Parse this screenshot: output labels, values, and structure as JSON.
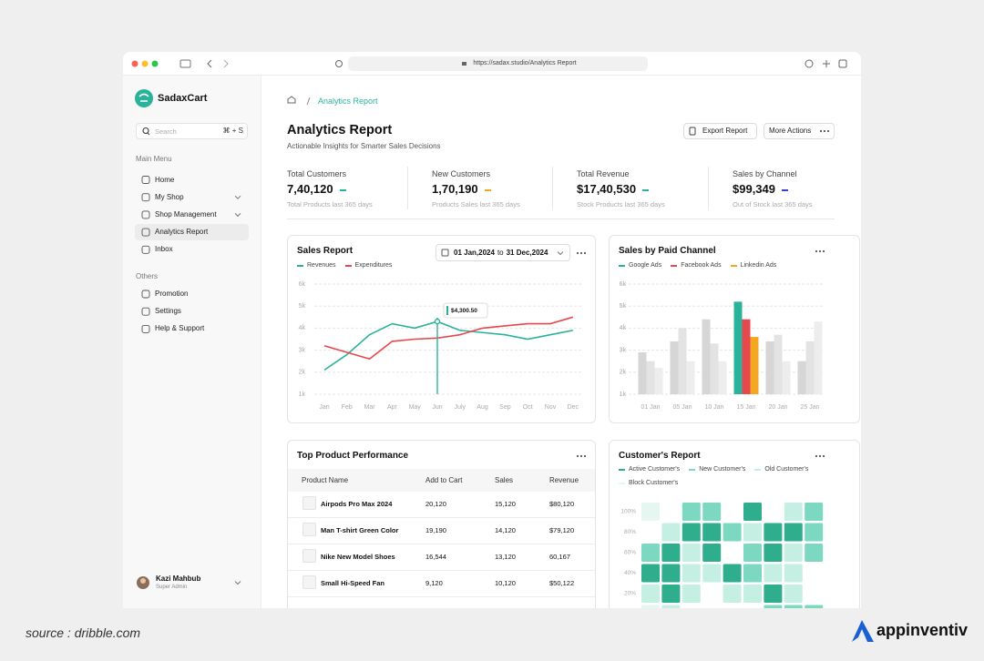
{
  "browser": {
    "url": "https://sadax.studio/Analytics Report"
  },
  "sidebar": {
    "brand": "SadaxCart",
    "search": {
      "placeholder": "Search",
      "shortcut": "⌘ + S"
    },
    "main_menu": {
      "title": "Main Menu",
      "items": [
        "Home",
        "My Shop",
        "Shop Management",
        "Analytics Report",
        "Inbox"
      ],
      "expandable": [
        false,
        true,
        true,
        false,
        false
      ]
    },
    "others": {
      "title": "Others",
      "items": [
        "Promotion",
        "Settings",
        "Help & Support"
      ]
    },
    "active_item": 3,
    "user": {
      "name": "Kazi Mahbub",
      "role": "Super Admin"
    }
  },
  "breadcrumb": {
    "current": "Analytics Report"
  },
  "header": {
    "title": "Analytics Report",
    "subtitle": "Actionable Insights for Smarter Sales Decisions",
    "actions": [
      "Export Report",
      "More Actions"
    ]
  },
  "stats": [
    {
      "label": "Total Customers",
      "value": "7,40,120",
      "note": "Total Products last 365 days",
      "color": "#2bb39a"
    },
    {
      "label": "New Customers",
      "value": "1,70,190",
      "note": "Products Sales last 365 days",
      "color": "#f5a623"
    },
    {
      "label": "Total Revenue",
      "value": "$17,40,530",
      "note": "Stock Products last 365 days",
      "color": "#2bb39a"
    },
    {
      "label": "Sales by Channel",
      "value": "$99,349",
      "note": "Out of Stock last 365 days",
      "color": "#3d3bd4"
    }
  ],
  "chart_data": [
    {
      "type": "line",
      "title": "Sales Report",
      "date_range": [
        "01 Jan,2024",
        "to",
        "31 Dec,2024"
      ],
      "categories": [
        "Jan",
        "Feb",
        "Mar",
        "Apr",
        "May",
        "Jun",
        "July",
        "Aug",
        "Sep",
        "Oct",
        "Nov",
        "Dec"
      ],
      "series": [
        {
          "name": "Revenues",
          "color": "#2bb39a",
          "values": [
            2100,
            2800,
            3700,
            4200,
            4000,
            4300.5,
            3900,
            3800,
            3700,
            3500,
            3700,
            3900
          ]
        },
        {
          "name": "Expenditures",
          "color": "#e5484d",
          "values": [
            3200,
            2900,
            2600,
            3400,
            3500,
            3550,
            3700,
            4000,
            4100,
            4200,
            4200,
            4500
          ]
        }
      ],
      "ylim": [
        1000,
        6000
      ],
      "yticks": [
        {
          "value": 1000,
          "label": "1k"
        },
        {
          "value": 2000,
          "label": "2k"
        },
        {
          "value": 3000,
          "label": "3k"
        },
        {
          "value": 4000,
          "label": "4k"
        },
        {
          "value": 5000,
          "label": "5k"
        },
        {
          "value": 6000,
          "label": "6k"
        }
      ],
      "grid": true,
      "tooltip": {
        "series": 0,
        "index": 5,
        "label": "$4,300.50"
      }
    },
    {
      "type": "bar",
      "title": "Sales by Paid Channel",
      "categories": [
        "01 Jan",
        "05 Jan",
        "10 Jan",
        "15 Jan",
        "20 Jan",
        "25 Jan"
      ],
      "series": [
        {
          "name": "Google Ads",
          "color": "#2bb39a",
          "values": [
            2900,
            3400,
            4400,
            5200,
            3400,
            2500
          ]
        },
        {
          "name": "Facebook Ads",
          "color": "#e5484d",
          "values": [
            2500,
            4000,
            3300,
            4400,
            3700,
            3400
          ]
        },
        {
          "name": "Linkedin Ads",
          "color": "#f5a623",
          "values": [
            2200,
            2500,
            2500,
            3600,
            2500,
            4300
          ]
        }
      ],
      "highlight_index": 3,
      "muted_colors": [
        "#d6d6d6",
        "#e3e3e3",
        "#ededed"
      ],
      "ylim": [
        1000,
        6000
      ],
      "yticks": [
        {
          "value": 1000,
          "label": "1k"
        },
        {
          "value": 2000,
          "label": "2k"
        },
        {
          "value": 3000,
          "label": "3k"
        },
        {
          "value": 4000,
          "label": "4k"
        },
        {
          "value": 5000,
          "label": "5k"
        },
        {
          "value": 6000,
          "label": "6k"
        }
      ],
      "grid": true
    },
    {
      "type": "heatmap",
      "title": "Customer's Report",
      "series": [
        {
          "name": "Active Customer's",
          "color": "#2fae8e"
        },
        {
          "name": "New Customer's",
          "color": "#7dd8c2"
        },
        {
          "name": "Old Customer's",
          "color": "#c6efe4"
        },
        {
          "name": "Block Customer's",
          "color": "#e6f6f1"
        }
      ],
      "ylim": [
        0,
        100
      ],
      "yticks": [
        {
          "value": 100,
          "label": "100%"
        },
        {
          "value": 80,
          "label": "80%"
        },
        {
          "value": 60,
          "label": "60%"
        },
        {
          "value": 40,
          "label": "40%"
        },
        {
          "value": 20,
          "label": "20%"
        }
      ],
      "cells": [
        [
          3,
          null,
          1,
          1,
          null,
          0,
          null,
          2,
          1
        ],
        [
          null,
          2,
          0,
          0,
          1,
          2,
          0,
          0,
          1
        ],
        [
          1,
          0,
          2,
          0,
          null,
          1,
          0,
          2,
          1
        ],
        [
          0,
          0,
          2,
          2,
          0,
          1,
          2,
          2,
          null
        ],
        [
          2,
          0,
          2,
          null,
          2,
          2,
          0,
          2,
          null
        ],
        [
          3,
          2,
          null,
          null,
          null,
          null,
          1,
          1,
          1
        ]
      ]
    }
  ],
  "top_products": {
    "title": "Top Product Performance",
    "columns": [
      "Product Name",
      "Add to Cart",
      "Sales",
      "Revenue"
    ],
    "rows": [
      [
        "Airpods Pro Max 2024",
        "20,120",
        "15,120",
        "$80,120"
      ],
      [
        "Man T-shirt Green Color",
        "19,190",
        "14,120",
        "$79,120"
      ],
      [
        "Nike New Model Shoes",
        "16,544",
        "13,120",
        "60,167"
      ],
      [
        "Small Hi-Speed Fan",
        "9,120",
        "10,120",
        "$50,122"
      ]
    ]
  },
  "footer": {
    "source": "source : dribble.com",
    "brand": "appinventiv"
  }
}
